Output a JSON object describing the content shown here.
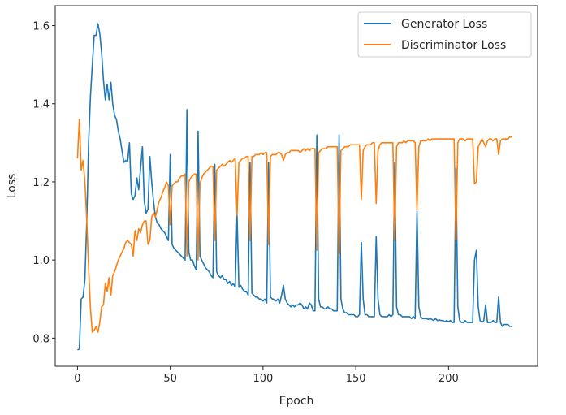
{
  "chart_data": {
    "type": "line",
    "title": "",
    "xlabel": "Epoch",
    "ylabel": "Loss",
    "xlim": [
      -12,
      248
    ],
    "ylim": [
      0.728,
      1.651
    ],
    "xticks": [
      0,
      50,
      100,
      150,
      200
    ],
    "yticks": [
      0.8,
      1.0,
      1.2,
      1.4,
      1.6
    ],
    "xtick_labels": [
      "0",
      "50",
      "100",
      "150",
      "200"
    ],
    "ytick_labels": [
      "0.8",
      "1.0",
      "1.2",
      "1.4",
      "1.6"
    ],
    "grid": false,
    "legend_position": "top-right",
    "series": [
      {
        "name": "Generator Loss",
        "color": "#1f77b4",
        "values": [
          0.77,
          0.772,
          0.9,
          0.905,
          0.95,
          1.1,
          1.3,
          1.42,
          1.5,
          1.575,
          1.575,
          1.605,
          1.58,
          1.53,
          1.46,
          1.41,
          1.45,
          1.41,
          1.455,
          1.4,
          1.37,
          1.36,
          1.33,
          1.31,
          1.28,
          1.25,
          1.255,
          1.252,
          1.3,
          1.17,
          1.155,
          1.165,
          1.21,
          1.18,
          1.235,
          1.29,
          1.15,
          1.12,
          1.13,
          1.265,
          1.2,
          1.15,
          1.11,
          1.095,
          1.09,
          1.08,
          1.075,
          1.07,
          1.06,
          1.05,
          1.27,
          1.04,
          1.03,
          1.025,
          1.02,
          1.015,
          1.01,
          1.005,
          1.0,
          1.385,
          1.02,
          1.0,
          1.0,
          0.985,
          0.975,
          1.33,
          1.01,
          1.0,
          0.99,
          0.98,
          0.975,
          0.97,
          0.96,
          0.955,
          1.245,
          0.97,
          0.96,
          0.955,
          0.96,
          0.95,
          0.95,
          0.94,
          0.945,
          0.935,
          0.94,
          0.93,
          1.115,
          0.93,
          0.935,
          0.925,
          0.92,
          0.92,
          0.91,
          1.25,
          0.915,
          0.91,
          0.905,
          0.905,
          0.9,
          0.9,
          0.895,
          0.9,
          0.89,
          1.25,
          0.905,
          0.9,
          0.9,
          0.895,
          0.9,
          0.89,
          0.91,
          0.935,
          0.9,
          0.89,
          0.885,
          0.88,
          0.885,
          0.88,
          0.885,
          0.885,
          0.89,
          0.885,
          0.875,
          0.88,
          0.875,
          0.89,
          0.885,
          0.87,
          0.87,
          1.32,
          0.9,
          0.88,
          0.88,
          0.875,
          0.875,
          0.88,
          0.875,
          0.875,
          0.87,
          0.87,
          0.87,
          1.32,
          0.9,
          0.875,
          0.865,
          0.865,
          0.86,
          0.86,
          0.86,
          0.86,
          0.855,
          0.855,
          0.86,
          1.045,
          0.9,
          0.86,
          0.86,
          0.855,
          0.855,
          0.855,
          0.855,
          1.06,
          0.9,
          0.86,
          0.855,
          0.855,
          0.855,
          0.855,
          0.86,
          0.855,
          0.86,
          1.25,
          0.88,
          0.86,
          0.86,
          0.855,
          0.855,
          0.855,
          0.855,
          0.855,
          0.85,
          0.855,
          0.85,
          1.125,
          0.88,
          0.855,
          0.85,
          0.85,
          0.85,
          0.848,
          0.85,
          0.848,
          0.845,
          0.85,
          0.845,
          0.847,
          0.845,
          0.845,
          0.842,
          0.845,
          0.842,
          0.845,
          0.84,
          0.84,
          1.235,
          0.88,
          0.845,
          0.84,
          0.84,
          0.845,
          0.84,
          0.84,
          0.84,
          0.84,
          1.0,
          1.025,
          0.88,
          0.845,
          0.84,
          0.845,
          0.885,
          0.84,
          0.84,
          0.84,
          0.845,
          0.84,
          0.84,
          0.905,
          0.84,
          0.83,
          0.835,
          0.835,
          0.835,
          0.83,
          0.83
        ]
      },
      {
        "name": "Discriminator Loss",
        "color": "#ff7f0e",
        "values": [
          1.26,
          1.36,
          1.23,
          1.255,
          1.2,
          1.1,
          0.98,
          0.875,
          0.815,
          0.82,
          0.83,
          0.815,
          0.84,
          0.88,
          0.885,
          0.94,
          0.92,
          0.955,
          0.91,
          0.96,
          0.97,
          0.985,
          1.0,
          1.01,
          1.02,
          1.03,
          1.045,
          1.05,
          1.045,
          1.04,
          1.01,
          1.075,
          1.05,
          1.08,
          1.07,
          1.09,
          1.1,
          1.1,
          1.04,
          1.05,
          1.11,
          1.12,
          1.11,
          1.13,
          1.15,
          1.16,
          1.175,
          1.185,
          1.2,
          1.19,
          1.09,
          1.19,
          1.195,
          1.2,
          1.2,
          1.21,
          1.215,
          1.215,
          1.22,
          1.01,
          1.2,
          1.21,
          1.215,
          1.22,
          1.22,
          1.0,
          1.195,
          1.21,
          1.22,
          1.225,
          1.23,
          1.235,
          1.24,
          1.24,
          1.05,
          1.23,
          1.235,
          1.24,
          1.245,
          1.24,
          1.245,
          1.25,
          1.255,
          1.25,
          1.255,
          1.26,
          1.115,
          1.25,
          1.255,
          1.26,
          1.26,
          1.265,
          1.265,
          1.05,
          1.265,
          1.265,
          1.27,
          1.27,
          1.27,
          1.275,
          1.27,
          1.275,
          1.275,
          1.04,
          1.265,
          1.27,
          1.27,
          1.27,
          1.275,
          1.275,
          1.27,
          1.255,
          1.27,
          1.275,
          1.275,
          1.28,
          1.28,
          1.28,
          1.28,
          1.28,
          1.275,
          1.28,
          1.285,
          1.28,
          1.285,
          1.28,
          1.285,
          1.285,
          1.285,
          1.025,
          1.275,
          1.28,
          1.285,
          1.285,
          1.285,
          1.29,
          1.29,
          1.29,
          1.29,
          1.29,
          1.29,
          1.015,
          1.28,
          1.285,
          1.29,
          1.29,
          1.29,
          1.295,
          1.295,
          1.295,
          1.295,
          1.295,
          1.295,
          1.155,
          1.28,
          1.29,
          1.295,
          1.295,
          1.295,
          1.3,
          1.3,
          1.145,
          1.28,
          1.295,
          1.3,
          1.3,
          1.3,
          1.3,
          1.3,
          1.3,
          1.3,
          1.05,
          1.29,
          1.3,
          1.3,
          1.3,
          1.305,
          1.3,
          1.305,
          1.305,
          1.305,
          1.305,
          1.3,
          1.13,
          1.29,
          1.305,
          1.305,
          1.305,
          1.305,
          1.31,
          1.305,
          1.31,
          1.31,
          1.31,
          1.31,
          1.31,
          1.31,
          1.31,
          1.31,
          1.31,
          1.31,
          1.31,
          1.31,
          1.31,
          1.05,
          1.3,
          1.31,
          1.31,
          1.31,
          1.305,
          1.31,
          1.31,
          1.31,
          1.31,
          1.195,
          1.2,
          1.29,
          1.3,
          1.31,
          1.3,
          1.29,
          1.305,
          1.31,
          1.31,
          1.305,
          1.31,
          1.31,
          1.27,
          1.305,
          1.31,
          1.31,
          1.31,
          1.31,
          1.315,
          1.315
        ]
      }
    ]
  }
}
